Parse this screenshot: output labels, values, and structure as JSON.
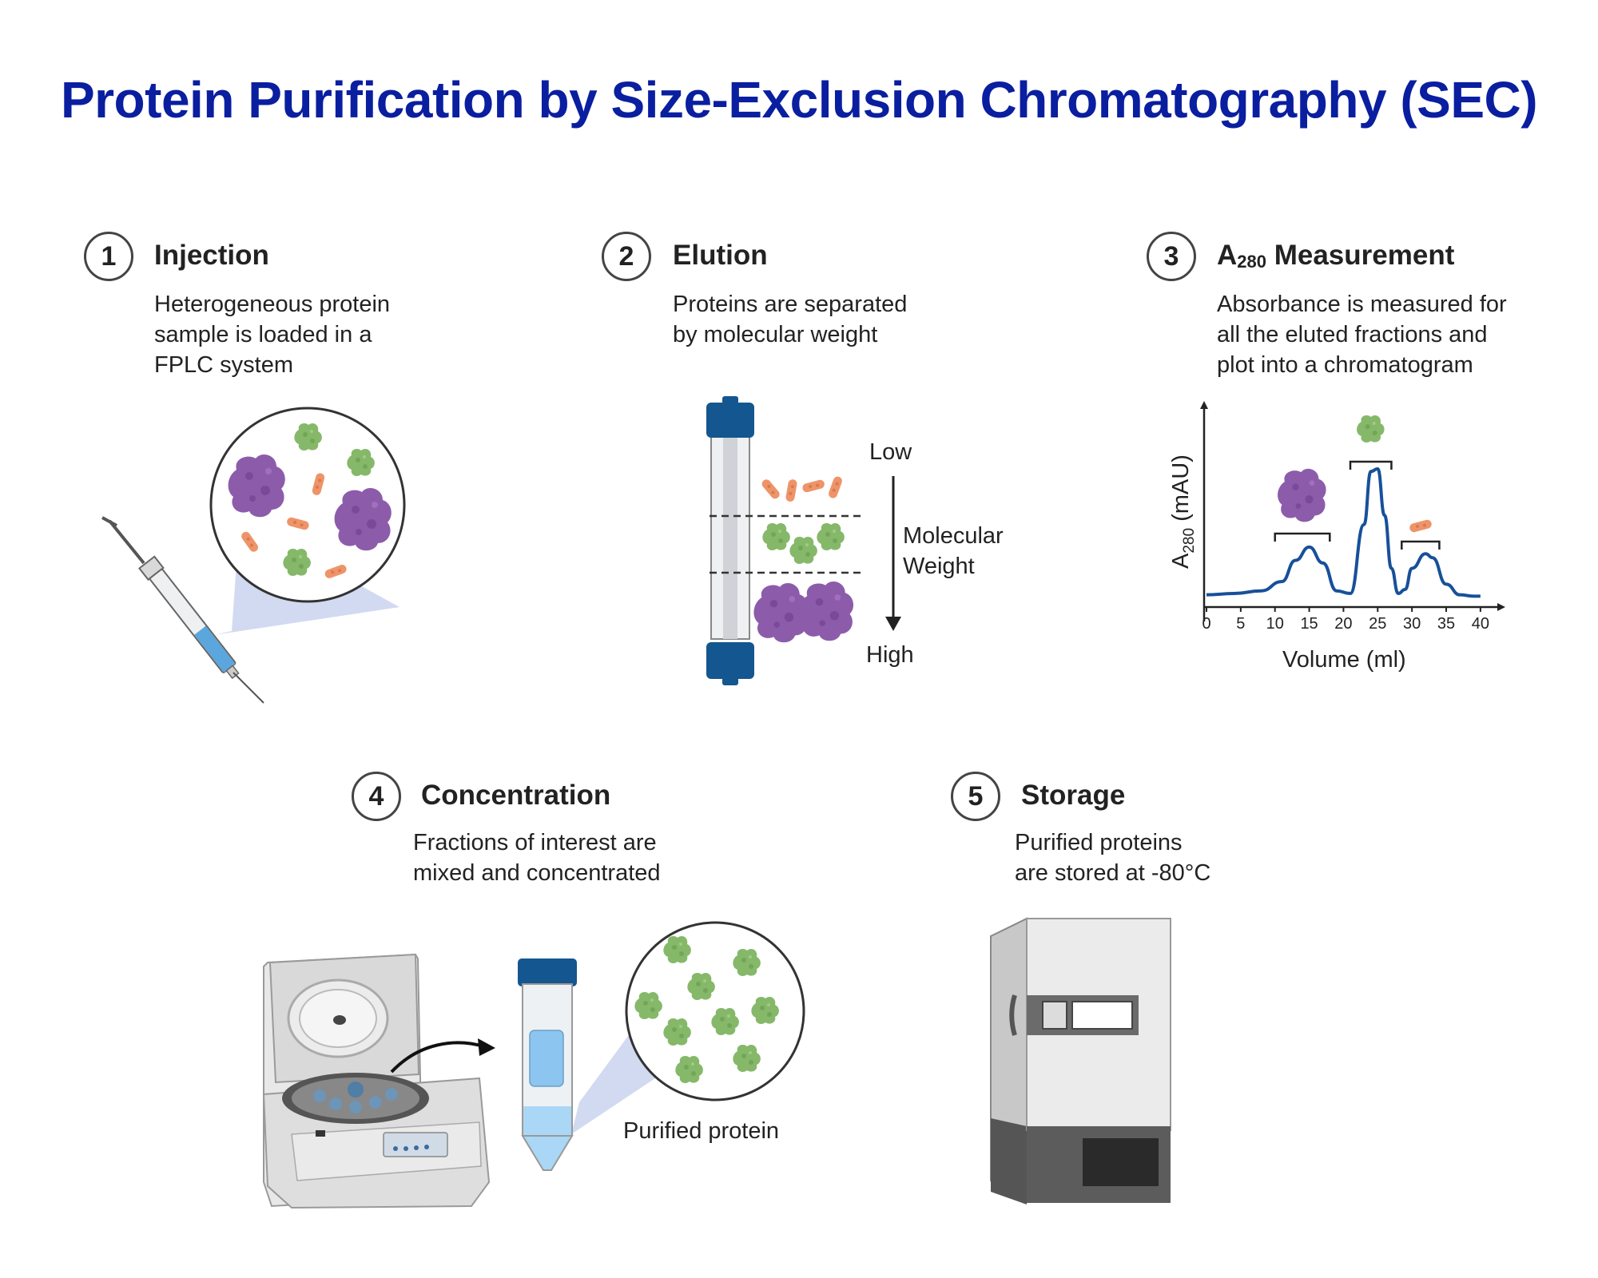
{
  "title": "Protein Purification by Size-Exclusion Chromatography (SEC)",
  "steps": [
    {
      "number": "1",
      "title": "Injection",
      "description": [
        "Heterogeneous protein",
        "sample is loaded in a",
        "FPLC system"
      ]
    },
    {
      "number": "2",
      "title": "Elution",
      "description": [
        "Proteins are separated",
        "by molecular weight"
      ]
    },
    {
      "number": "3",
      "title_main": "A",
      "title_sub": "280",
      "title_rest": " Measurement",
      "description": [
        "Absorbance is measured for",
        "all the eluted fractions and",
        "plot into a chromatogram"
      ]
    },
    {
      "number": "4",
      "title": "Concentration",
      "description": [
        "Fractions of interest are",
        "mixed and concentrated"
      ]
    },
    {
      "number": "5",
      "title": "Storage",
      "description": [
        "Purified proteins",
        "are stored at -80°C"
      ]
    }
  ],
  "elution": {
    "low": "Low",
    "mw_line1": "Molecular",
    "mw_line2": "Weight",
    "high": "High"
  },
  "concentration": {
    "purified_label": "Purified protein"
  },
  "chart_data": {
    "type": "line",
    "ylabel_main": "A",
    "ylabel_sub": "280",
    "ylabel_rest": " (mAU)",
    "xlabel": "Volume (ml)",
    "x_ticks": [
      "0",
      "5",
      "10",
      "15",
      "20",
      "25",
      "30",
      "35",
      "40"
    ],
    "xlim": [
      0,
      42
    ],
    "ylim": [
      0,
      1
    ],
    "x": [
      0,
      4,
      8,
      11,
      13,
      15,
      17,
      19,
      21,
      23,
      24,
      25,
      26,
      27,
      28,
      29,
      30,
      32,
      33,
      35,
      37,
      39,
      40
    ],
    "y": [
      0.02,
      0.03,
      0.05,
      0.12,
      0.28,
      0.38,
      0.26,
      0.05,
      0.03,
      0.55,
      0.95,
      0.97,
      0.62,
      0.22,
      0.03,
      0.06,
      0.22,
      0.33,
      0.3,
      0.1,
      0.02,
      0.01,
      0.01
    ],
    "peaks": [
      {
        "x_start": 10,
        "x_end": 18,
        "protein": "large"
      },
      {
        "x_start": 21,
        "x_end": 27,
        "protein": "medium"
      },
      {
        "x_start": 28.5,
        "x_end": 34,
        "protein": "small"
      }
    ],
    "line_color": "#17509a"
  },
  "colors": {
    "title": "#0a1ea0",
    "large_protein": "#8c5cab",
    "medium_protein": "#86b86a",
    "small_protein": "#ee9468",
    "cap_blue": "#14568f"
  }
}
